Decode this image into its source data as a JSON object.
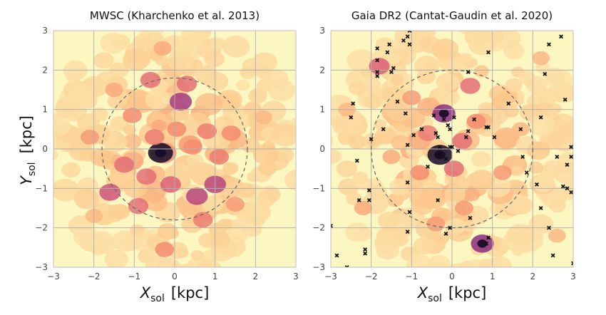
{
  "chart_data": [
    {
      "type": "heatmap",
      "title": "MWSC (Kharchenko et al. 2013)",
      "xlabel_main": "X",
      "xlabel_sub": "sol",
      "xlabel_unit": "[kpc]",
      "ylabel_main": "Y",
      "ylabel_sub": "sol",
      "ylabel_unit": "[kpc]",
      "xlim": [
        -3,
        3
      ],
      "ylim": [
        -3,
        3
      ],
      "xticks": [
        "−3",
        "−2",
        "−1",
        "0",
        "1",
        "2",
        "3"
      ],
      "yticks": [
        "3",
        "2",
        "1",
        "0",
        "−1",
        "−2",
        "−3"
      ],
      "grid": true,
      "colormap": "magma_r",
      "background_color": "#fcf7c1",
      "circle_radius": 1.8,
      "hotspots": [
        {
          "x": -0.35,
          "y": -0.1,
          "w": 1.0
        },
        {
          "x": 0.15,
          "y": 1.2,
          "w": 0.75
        },
        {
          "x": -1.6,
          "y": -1.1,
          "w": 0.65
        },
        {
          "x": 0.55,
          "y": -1.2,
          "w": 0.7
        },
        {
          "x": 1.0,
          "y": -0.9,
          "w": 0.7
        },
        {
          "x": -0.6,
          "y": 1.75,
          "w": 0.55
        },
        {
          "x": 0.3,
          "y": 1.65,
          "w": 0.55
        },
        {
          "x": -1.25,
          "y": -0.4,
          "w": 0.55
        },
        {
          "x": 0.8,
          "y": 0.45,
          "w": 0.5
        },
        {
          "x": -0.9,
          "y": -1.45,
          "w": 0.55
        },
        {
          "x": -0.1,
          "y": -0.9,
          "w": 0.6
        },
        {
          "x": 1.4,
          "y": 0.4,
          "w": 0.45
        },
        {
          "x": -1.05,
          "y": 0.85,
          "w": 0.45
        },
        {
          "x": 0.7,
          "y": -1.8,
          "w": 0.5
        },
        {
          "x": -0.25,
          "y": -2.55,
          "w": 0.45
        },
        {
          "x": 1.1,
          "y": -0.2,
          "w": 0.5
        },
        {
          "x": -2.1,
          "y": 0.3,
          "w": 0.4
        },
        {
          "x": 0.05,
          "y": 0.5,
          "w": 0.45
        },
        {
          "x": -0.5,
          "y": 0.3,
          "w": 0.5
        },
        {
          "x": 0.45,
          "y": 0.05,
          "w": 0.45
        },
        {
          "x": -0.7,
          "y": -0.7,
          "w": 0.55
        },
        {
          "x": 1.5,
          "y": -1.4,
          "w": 0.4
        },
        {
          "x": -1.5,
          "y": 1.5,
          "w": 0.35
        },
        {
          "x": 2.2,
          "y": 0.8,
          "w": 0.3
        },
        {
          "x": -0.3,
          "y": 2.55,
          "w": 0.35
        },
        {
          "x": -2.0,
          "y": -1.7,
          "w": 0.3
        }
      ],
      "markers": []
    },
    {
      "type": "heatmap",
      "title": "Gaia DR2 (Cantat-Gaudin et al. 2020)",
      "xlabel_main": "X",
      "xlabel_sub": "sol",
      "xlabel_unit": "[kpc]",
      "ylabel_main": "",
      "ylabel_sub": "",
      "ylabel_unit": "",
      "xlim": [
        -3,
        3
      ],
      "ylim": [
        -3,
        3
      ],
      "xticks": [
        "−3",
        "−2",
        "−1",
        "0",
        "1",
        "2",
        "3"
      ],
      "yticks": [
        "3",
        "2",
        "1",
        "0",
        "−1",
        "−2",
        "−3"
      ],
      "grid": true,
      "colormap": "magma_r",
      "background_color": "#fcf7c1",
      "circle_radius": 2.0,
      "hotspots": [
        {
          "x": -0.3,
          "y": -0.15,
          "w": 1.0
        },
        {
          "x": -0.2,
          "y": 0.9,
          "w": 0.8
        },
        {
          "x": 0.75,
          "y": -2.4,
          "w": 0.8
        },
        {
          "x": 0.45,
          "y": 1.6,
          "w": 0.55
        },
        {
          "x": -1.8,
          "y": 2.1,
          "w": 0.6
        },
        {
          "x": 0.25,
          "y": 0.2,
          "w": 0.55
        },
        {
          "x": -0.6,
          "y": 0.4,
          "w": 0.5
        },
        {
          "x": 0.05,
          "y": -0.5,
          "w": 0.55
        },
        {
          "x": -0.8,
          "y": -0.6,
          "w": 0.45
        },
        {
          "x": 0.6,
          "y": 0.7,
          "w": 0.45
        },
        {
          "x": -1.0,
          "y": 1.3,
          "w": 0.4
        },
        {
          "x": -2.2,
          "y": -1.5,
          "w": 0.35
        },
        {
          "x": 1.25,
          "y": -0.6,
          "w": 0.4
        },
        {
          "x": -1.5,
          "y": -0.2,
          "w": 0.35
        },
        {
          "x": 0.3,
          "y": -1.5,
          "w": 0.4
        },
        {
          "x": 2.6,
          "y": -2.2,
          "w": 0.3
        },
        {
          "x": -0.4,
          "y": -1.9,
          "w": 0.4
        },
        {
          "x": 1.7,
          "y": 0.5,
          "w": 0.3
        },
        {
          "x": -2.6,
          "y": 1.0,
          "w": 0.3
        },
        {
          "x": 2.2,
          "y": 2.3,
          "w": 0.3
        }
      ],
      "markers": [
        [
          -1.85,
          2.55
        ],
        [
          -1.85,
          2.25
        ],
        [
          -1.85,
          1.95
        ],
        [
          -1.85,
          1.85
        ],
        [
          -1.6,
          2.45
        ],
        [
          -1.55,
          2.65
        ],
        [
          -1.5,
          1.95
        ],
        [
          -1.45,
          2.05
        ],
        [
          -1.35,
          1.2
        ],
        [
          -1.2,
          2.75
        ],
        [
          -1.1,
          2.85
        ],
        [
          -1.05,
          2.65
        ],
        [
          -1.05,
          3.0
        ],
        [
          -1.15,
          0.9
        ],
        [
          -1.1,
          0.1
        ],
        [
          -1.1,
          -0.85
        ],
        [
          -1.05,
          -1.6
        ],
        [
          -0.95,
          0.35
        ],
        [
          -0.75,
          0.5
        ],
        [
          -0.6,
          -0.45
        ],
        [
          -0.45,
          0.85
        ],
        [
          -0.4,
          0.4
        ],
        [
          -0.35,
          0.3
        ],
        [
          -0.3,
          0.05
        ],
        [
          -0.3,
          -0.15
        ],
        [
          -0.2,
          0.75
        ],
        [
          -0.1,
          0.6
        ],
        [
          -0.05,
          0.5
        ],
        [
          -0.05,
          0.05
        ],
        [
          0.15,
          -0.05
        ],
        [
          0.35,
          0.3
        ],
        [
          0.4,
          1.95
        ],
        [
          0.4,
          0.45
        ],
        [
          0.55,
          0.75
        ],
        [
          0.85,
          0.55
        ],
        [
          0.9,
          2.45
        ],
        [
          0.9,
          0.55
        ],
        [
          1.05,
          0.3
        ],
        [
          1.4,
          1.15
        ],
        [
          1.7,
          0.5
        ],
        [
          1.75,
          -0.2
        ],
        [
          1.85,
          -0.6
        ],
        [
          -1.7,
          0.5
        ],
        [
          -2.0,
          0.25
        ],
        [
          -2.05,
          -1.05
        ],
        [
          -2.05,
          -1.3
        ],
        [
          -2.15,
          -2.55
        ],
        [
          -2.15,
          -2.65
        ],
        [
          -2.3,
          -1.3
        ],
        [
          -2.35,
          -0.3
        ],
        [
          -2.45,
          1.15
        ],
        [
          -2.5,
          0.8
        ],
        [
          -2.6,
          -3.0
        ],
        [
          -2.85,
          -2.7
        ],
        [
          -3.0,
          -1.95
        ],
        [
          -0.05,
          -2.0
        ],
        [
          -0.15,
          -2.15
        ],
        [
          -0.35,
          -1.3
        ],
        [
          -1.1,
          -2.1
        ],
        [
          0.45,
          -1.75
        ],
        [
          0.9,
          -2.25
        ],
        [
          0.85,
          -2.4
        ],
        [
          2.1,
          -0.9
        ],
        [
          2.2,
          -1.5
        ],
        [
          2.4,
          -2.0
        ],
        [
          2.5,
          -2.7
        ],
        [
          2.6,
          -0.2
        ],
        [
          2.75,
          -0.95
        ],
        [
          2.85,
          -0.4
        ],
        [
          2.95,
          -0.2
        ],
        [
          2.95,
          0.05
        ],
        [
          2.95,
          -1.1
        ],
        [
          2.85,
          -1.0
        ],
        [
          2.2,
          0.8
        ],
        [
          2.3,
          1.9
        ],
        [
          2.4,
          2.65
        ],
        [
          2.7,
          2.85
        ],
        [
          2.8,
          1.25
        ],
        [
          0.05,
          0.8
        ],
        [
          -0.15,
          -0.25
        ],
        [
          0.0,
          0.05
        ],
        [
          1.2,
          -3.1
        ],
        [
          3.0,
          -2.9
        ]
      ]
    }
  ]
}
